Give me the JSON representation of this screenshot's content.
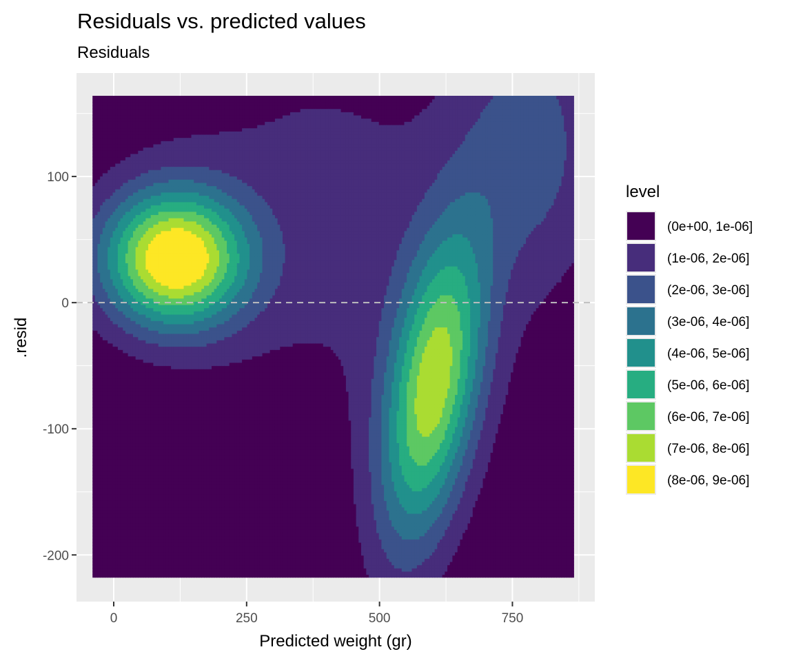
{
  "chart_data": {
    "type": "contour",
    "title": "Residuals vs. predicted values",
    "subtitle": "Residuals",
    "xlabel": "Predicted weight (gr)",
    "ylabel": ".resid",
    "xlim": [
      -70,
      905
    ],
    "ylim": [
      -237,
      182
    ],
    "x_data_range": [
      -40,
      866
    ],
    "y_data_range": [
      -218,
      164
    ],
    "x_ticks": [
      0,
      250,
      500,
      750
    ],
    "x_tick_labels": [
      "0",
      "250",
      "500",
      "750"
    ],
    "y_ticks": [
      -200,
      -100,
      0,
      100
    ],
    "y_tick_labels": [
      "-200",
      "-100",
      "0",
      "100"
    ],
    "grid": true,
    "reference_line": {
      "y": 0,
      "style": "dashed",
      "color": "#bebebe"
    },
    "legend": {
      "title": "level",
      "position": "right",
      "entries": [
        {
          "label": "(0e+00, 1e-06]",
          "color": "#440154"
        },
        {
          "label": "(1e-06, 2e-06]",
          "color": "#472D7B"
        },
        {
          "label": "(2e-06, 3e-06]",
          "color": "#3B528B"
        },
        {
          "label": "(3e-06, 4e-06]",
          "color": "#2C728E"
        },
        {
          "label": "(4e-06, 5e-06]",
          "color": "#21908C"
        },
        {
          "label": "(5e-06, 6e-06]",
          "color": "#27AD81"
        },
        {
          "label": "(6e-06, 7e-06]",
          "color": "#5DC863"
        },
        {
          "label": "(7e-06, 8e-06]",
          "color": "#AADC32"
        },
        {
          "label": "(8e-06, 9e-06]",
          "color": "#FDE725"
        }
      ]
    },
    "density_modes": [
      {
        "x": 115,
        "y": 35,
        "peak_level": "(8e-06, 9e-06]"
      },
      {
        "x": 580,
        "y": -62,
        "peak_level": "(6e-06, 7e-06]"
      }
    ]
  }
}
